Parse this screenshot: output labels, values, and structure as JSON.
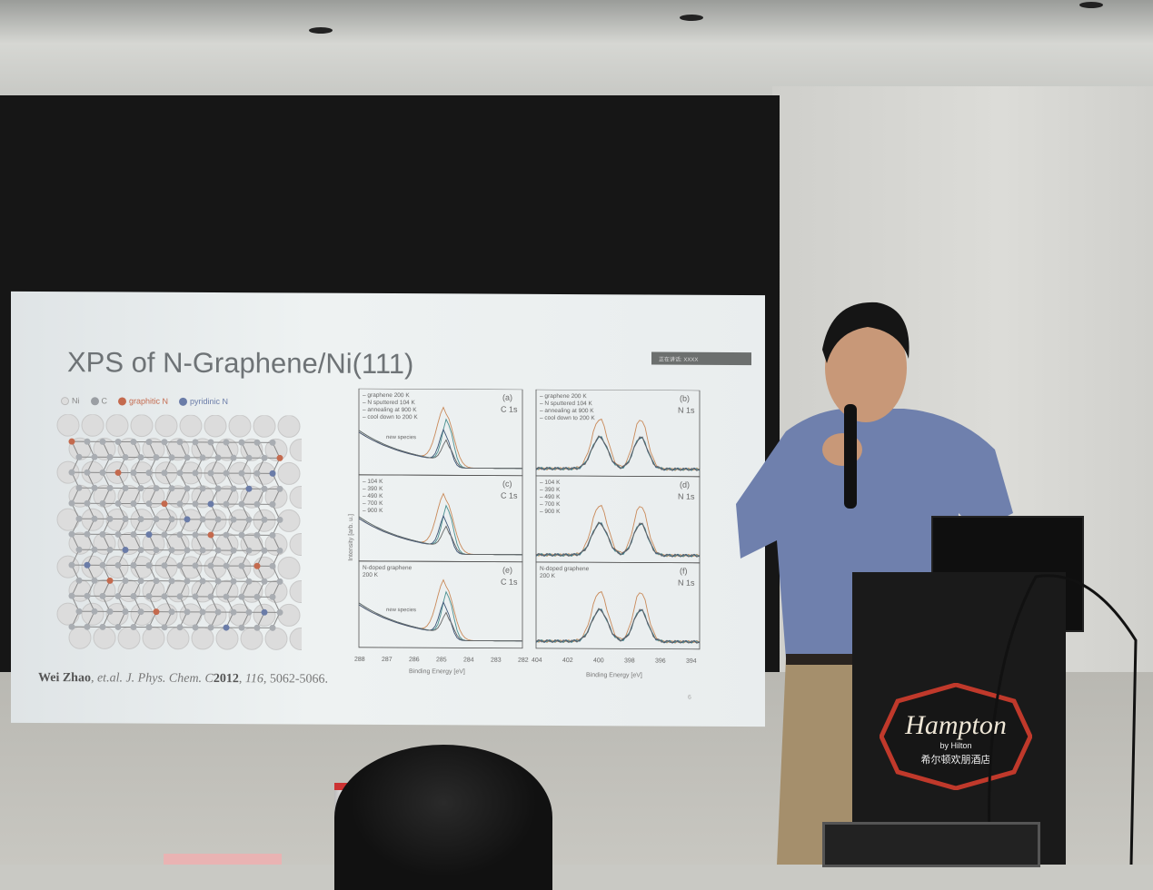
{
  "slide": {
    "title": "XPS of N-Graphene/Ni(111)",
    "badge": "正在讲话: XXXX",
    "page_number": "6",
    "legend": [
      {
        "label": "Ni",
        "color": "#d8d8d8"
      },
      {
        "label": "C",
        "color": "#9a9ea3"
      },
      {
        "label": "graphitic N",
        "color": "#c46a4e"
      },
      {
        "label": "pyridinic N",
        "color": "#6a7ca8"
      }
    ],
    "citation": {
      "authors": "Wei Zhao",
      "etal": ", et.al. J. Phys. Chem. C",
      "year": "2012",
      "volume": "116",
      "pages": ", 5062-5066."
    },
    "figure": {
      "ylabel": "Intensity [arb. u.]",
      "panels": [
        {
          "tag": "(a)",
          "core": "C 1s",
          "legend": [
            "graphene 200 K",
            "N sputtered 104 K",
            "annealing at 900 K",
            "cool down to 200 K"
          ],
          "annotation": "new species"
        },
        {
          "tag": "(b)",
          "core": "N 1s",
          "legend": [
            "graphene 200 K",
            "N sputtered 104 K",
            "annealing at 900 K",
            "cool down to 200 K"
          ]
        },
        {
          "tag": "(c)",
          "core": "C 1s",
          "legend": [
            "104 K",
            "390 K",
            "490 K",
            "700 K",
            "900 K"
          ]
        },
        {
          "tag": "(d)",
          "core": "N 1s",
          "legend": [
            "104 K",
            "390 K",
            "490 K",
            "700 K",
            "900 K"
          ]
        },
        {
          "tag": "(e)",
          "core": "C 1s",
          "legend": [
            "N-doped graphene",
            "200 K"
          ],
          "annotation": "new species"
        },
        {
          "tag": "(f)",
          "core": "N 1s",
          "legend": [
            "N-doped graphene",
            "200 K"
          ]
        }
      ],
      "left_xticks": [
        "288",
        "287",
        "286",
        "285",
        "284",
        "283",
        "282"
      ],
      "right_xticks": [
        "404",
        "402",
        "400",
        "398",
        "396",
        "394"
      ],
      "xlabel": "Binding Energy [eV]"
    }
  },
  "podium_logo": {
    "brand": "Hampton",
    "sub": "by Hilton",
    "chinese": "希尔顿欢朋酒店"
  },
  "colors": {
    "orange": "#c98a5a",
    "teal": "#4a8f8f",
    "navy": "#3e5677",
    "logo_red": "#c0392b"
  }
}
